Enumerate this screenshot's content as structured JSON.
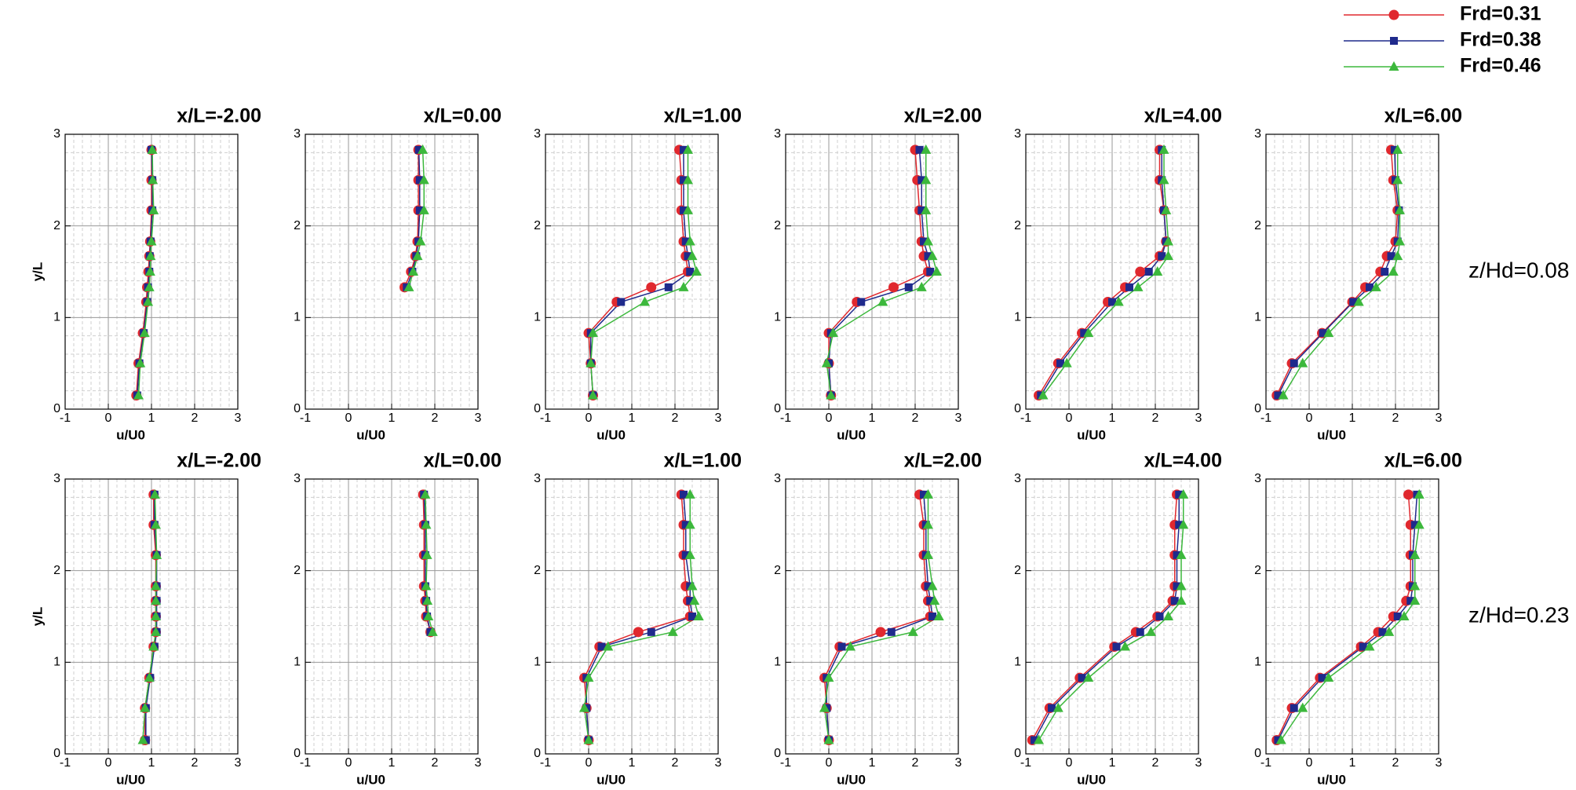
{
  "chart_data": [
    {
      "type": "line",
      "title": "x/L=-2.00",
      "x_label": "u/U0",
      "y_label": "y/L",
      "xlim": [
        -1,
        3
      ],
      "xticks": [
        -1,
        0,
        1,
        2,
        3
      ],
      "ylim": [
        0,
        3
      ],
      "yticks": [
        0,
        1,
        2,
        3
      ],
      "grid": true,
      "y": [
        0.15,
        0.5,
        0.83,
        1.17,
        1.33,
        1.5,
        1.67,
        1.83,
        2.17,
        2.5,
        2.83
      ],
      "series": [
        {
          "name": "Frd=0.31",
          "color": "#e0282e",
          "marker": "circle",
          "values": [
            0.65,
            0.7,
            0.8,
            0.88,
            0.9,
            0.93,
            0.95,
            0.97,
            1.0,
            1.0,
            1.0
          ]
        },
        {
          "name": "Frd=0.38",
          "color": "#1f2a8c",
          "marker": "square",
          "values": [
            0.67,
            0.72,
            0.82,
            0.9,
            0.92,
            0.95,
            0.96,
            0.98,
            1.02,
            1.02,
            1.0
          ]
        },
        {
          "name": "Frd=0.46",
          "color": "#3cb83c",
          "marker": "triangle",
          "values": [
            0.7,
            0.74,
            0.84,
            0.92,
            0.95,
            0.97,
            0.98,
            1.0,
            1.05,
            1.03,
            1.02
          ]
        }
      ]
    },
    {
      "type": "line",
      "title": "x/L=0.00",
      "x_label": "u/U0",
      "xlim": [
        -1,
        3
      ],
      "xticks": [
        -1,
        0,
        1,
        2,
        3
      ],
      "ylim": [
        0,
        3
      ],
      "yticks": [
        0,
        1,
        2,
        3
      ],
      "grid": true,
      "y": [
        0.15,
        0.5,
        0.83,
        1.17,
        1.33,
        1.5,
        1.67,
        1.83,
        2.17,
        2.5,
        2.83
      ],
      "series": [
        {
          "color": "#e0282e",
          "marker": "circle",
          "values": [
            null,
            null,
            null,
            null,
            1.3,
            1.45,
            1.55,
            1.6,
            1.62,
            1.62,
            1.62
          ]
        },
        {
          "color": "#1f2a8c",
          "marker": "square",
          "values": [
            null,
            null,
            null,
            null,
            1.35,
            1.48,
            1.57,
            1.62,
            1.65,
            1.65,
            1.63
          ]
        },
        {
          "color": "#3cb83c",
          "marker": "triangle",
          "values": [
            null,
            null,
            null,
            null,
            1.4,
            1.5,
            1.6,
            1.67,
            1.75,
            1.75,
            1.72
          ]
        }
      ]
    },
    {
      "type": "line",
      "title": "x/L=1.00",
      "x_label": "u/U0",
      "xlim": [
        -1,
        3
      ],
      "xticks": [
        -1,
        0,
        1,
        2,
        3
      ],
      "ylim": [
        0,
        3
      ],
      "yticks": [
        0,
        1,
        2,
        3
      ],
      "grid": true,
      "y": [
        0.15,
        0.5,
        0.83,
        1.17,
        1.33,
        1.5,
        1.67,
        1.83,
        2.17,
        2.5,
        2.83
      ],
      "series": [
        {
          "color": "#e0282e",
          "marker": "circle",
          "values": [
            0.1,
            0.05,
            0.0,
            0.65,
            1.45,
            2.3,
            2.25,
            2.2,
            2.15,
            2.15,
            2.1
          ]
        },
        {
          "color": "#1f2a8c",
          "marker": "square",
          "values": [
            0.1,
            0.05,
            0.05,
            0.75,
            1.85,
            2.35,
            2.3,
            2.25,
            2.2,
            2.2,
            2.2
          ]
        },
        {
          "color": "#3cb83c",
          "marker": "triangle",
          "values": [
            0.1,
            0.05,
            0.1,
            1.3,
            2.2,
            2.5,
            2.4,
            2.35,
            2.3,
            2.3,
            2.3
          ]
        }
      ]
    },
    {
      "type": "line",
      "title": "x/L=2.00",
      "x_label": "u/U0",
      "xlim": [
        -1,
        3
      ],
      "xticks": [
        -1,
        0,
        1,
        2,
        3
      ],
      "ylim": [
        0,
        3
      ],
      "yticks": [
        0,
        1,
        2,
        3
      ],
      "grid": true,
      "y": [
        0.15,
        0.5,
        0.83,
        1.17,
        1.33,
        1.5,
        1.67,
        1.83,
        2.17,
        2.5,
        2.83
      ],
      "series": [
        {
          "color": "#e0282e",
          "marker": "circle",
          "values": [
            0.05,
            0.0,
            0.0,
            0.65,
            1.5,
            2.3,
            2.2,
            2.15,
            2.1,
            2.05,
            2.0
          ]
        },
        {
          "color": "#1f2a8c",
          "marker": "square",
          "values": [
            0.05,
            0.0,
            0.05,
            0.75,
            1.85,
            2.35,
            2.3,
            2.2,
            2.15,
            2.15,
            2.1
          ]
        },
        {
          "color": "#3cb83c",
          "marker": "triangle",
          "values": [
            0.05,
            -0.05,
            0.1,
            1.25,
            2.15,
            2.5,
            2.4,
            2.3,
            2.25,
            2.25,
            2.25
          ]
        }
      ]
    },
    {
      "type": "line",
      "title": "x/L=4.00",
      "x_label": "u/U0",
      "xlim": [
        -1,
        3
      ],
      "xticks": [
        -1,
        0,
        1,
        2,
        3
      ],
      "ylim": [
        0,
        3
      ],
      "yticks": [
        0,
        1,
        2,
        3
      ],
      "grid": true,
      "y": [
        0.15,
        0.5,
        0.83,
        1.17,
        1.33,
        1.5,
        1.67,
        1.83,
        2.17,
        2.5,
        2.83
      ],
      "series": [
        {
          "color": "#e0282e",
          "marker": "circle",
          "values": [
            -0.7,
            -0.25,
            0.3,
            0.9,
            1.3,
            1.65,
            2.1,
            2.25,
            2.2,
            2.1,
            2.1
          ]
        },
        {
          "color": "#1f2a8c",
          "marker": "square",
          "values": [
            -0.65,
            -0.2,
            0.35,
            1.0,
            1.4,
            1.85,
            2.15,
            2.25,
            2.2,
            2.15,
            2.15
          ]
        },
        {
          "color": "#3cb83c",
          "marker": "triangle",
          "values": [
            -0.6,
            -0.05,
            0.45,
            1.15,
            1.6,
            2.05,
            2.3,
            2.3,
            2.25,
            2.2,
            2.2
          ]
        }
      ]
    },
    {
      "type": "line",
      "title": "x/L=6.00",
      "x_label": "u/U0",
      "annotation": "z/Hd=0.08",
      "xlim": [
        -1,
        3
      ],
      "xticks": [
        -1,
        0,
        1,
        2,
        3
      ],
      "ylim": [
        0,
        3
      ],
      "yticks": [
        0,
        1,
        2,
        3
      ],
      "grid": true,
      "y": [
        0.15,
        0.5,
        0.83,
        1.17,
        1.33,
        1.5,
        1.67,
        1.83,
        2.17,
        2.5,
        2.83
      ],
      "series": [
        {
          "color": "#e0282e",
          "marker": "circle",
          "values": [
            -0.75,
            -0.4,
            0.3,
            1.0,
            1.3,
            1.65,
            1.8,
            2.0,
            2.05,
            1.95,
            1.9
          ]
        },
        {
          "color": "#1f2a8c",
          "marker": "square",
          "values": [
            -0.72,
            -0.35,
            0.32,
            1.02,
            1.4,
            1.75,
            1.9,
            2.05,
            2.08,
            2.0,
            1.98
          ]
        },
        {
          "color": "#3cb83c",
          "marker": "triangle",
          "values": [
            -0.6,
            -0.15,
            0.45,
            1.15,
            1.55,
            1.95,
            2.05,
            2.1,
            2.1,
            2.05,
            2.05
          ]
        }
      ]
    },
    {
      "type": "line",
      "title": "x/L=-2.00",
      "x_label": "u/U0",
      "y_label": "y/L",
      "xlim": [
        -1,
        3
      ],
      "xticks": [
        -1,
        0,
        1,
        2,
        3
      ],
      "ylim": [
        0,
        3
      ],
      "yticks": [
        0,
        1,
        2,
        3
      ],
      "grid": true,
      "y": [
        0.15,
        0.5,
        0.83,
        1.17,
        1.33,
        1.5,
        1.67,
        1.83,
        2.17,
        2.5,
        2.83
      ],
      "series": [
        {
          "color": "#e0282e",
          "marker": "circle",
          "values": [
            0.85,
            0.85,
            0.95,
            1.05,
            1.1,
            1.1,
            1.1,
            1.1,
            1.1,
            1.05,
            1.05
          ]
        },
        {
          "color": "#1f2a8c",
          "marker": "square",
          "values": [
            0.87,
            0.87,
            0.97,
            1.07,
            1.12,
            1.12,
            1.12,
            1.12,
            1.12,
            1.07,
            1.07
          ]
        },
        {
          "color": "#3cb83c",
          "marker": "triangle",
          "values": [
            0.8,
            0.85,
            0.95,
            1.05,
            1.1,
            1.1,
            1.1,
            1.1,
            1.12,
            1.1,
            1.08
          ]
        }
      ]
    },
    {
      "type": "line",
      "title": "x/L=0.00",
      "x_label": "u/U0",
      "xlim": [
        -1,
        3
      ],
      "xticks": [
        -1,
        0,
        1,
        2,
        3
      ],
      "ylim": [
        0,
        3
      ],
      "yticks": [
        0,
        1,
        2,
        3
      ],
      "grid": true,
      "y": [
        0.15,
        0.5,
        0.83,
        1.17,
        1.33,
        1.5,
        1.67,
        1.83,
        2.17,
        2.5,
        2.83
      ],
      "series": [
        {
          "color": "#e0282e",
          "marker": "circle",
          "values": [
            null,
            null,
            null,
            null,
            1.9,
            1.8,
            1.78,
            1.75,
            1.75,
            1.75,
            1.73
          ]
        },
        {
          "color": "#1f2a8c",
          "marker": "square",
          "values": [
            null,
            null,
            null,
            null,
            1.9,
            1.82,
            1.8,
            1.78,
            1.78,
            1.78,
            1.75
          ]
        },
        {
          "color": "#3cb83c",
          "marker": "triangle",
          "values": [
            null,
            null,
            null,
            null,
            1.95,
            1.85,
            1.83,
            1.8,
            1.82,
            1.8,
            1.78
          ]
        }
      ]
    },
    {
      "type": "line",
      "title": "x/L=1.00",
      "x_label": "u/U0",
      "xlim": [
        -1,
        3
      ],
      "xticks": [
        -1,
        0,
        1,
        2,
        3
      ],
      "ylim": [
        0,
        3
      ],
      "yticks": [
        0,
        1,
        2,
        3
      ],
      "grid": true,
      "y": [
        0.15,
        0.5,
        0.83,
        1.17,
        1.33,
        1.5,
        1.67,
        1.83,
        2.17,
        2.5,
        2.83
      ],
      "series": [
        {
          "color": "#e0282e",
          "marker": "circle",
          "values": [
            0.0,
            -0.05,
            -0.1,
            0.25,
            1.15,
            2.35,
            2.3,
            2.25,
            2.2,
            2.2,
            2.15
          ]
        },
        {
          "color": "#1f2a8c",
          "marker": "square",
          "values": [
            0.0,
            -0.05,
            -0.05,
            0.3,
            1.45,
            2.4,
            2.35,
            2.35,
            2.25,
            2.25,
            2.2
          ]
        },
        {
          "color": "#3cb83c",
          "marker": "triangle",
          "values": [
            0.0,
            -0.1,
            0.0,
            0.45,
            1.95,
            2.55,
            2.45,
            2.4,
            2.35,
            2.35,
            2.35
          ]
        }
      ]
    },
    {
      "type": "line",
      "title": "x/L=2.00",
      "x_label": "u/U0",
      "xlim": [
        -1,
        3
      ],
      "xticks": [
        -1,
        0,
        1,
        2,
        3
      ],
      "ylim": [
        0,
        3
      ],
      "yticks": [
        0,
        1,
        2,
        3
      ],
      "grid": true,
      "y": [
        0.15,
        0.5,
        0.83,
        1.17,
        1.33,
        1.5,
        1.67,
        1.83,
        2.17,
        2.5,
        2.83
      ],
      "series": [
        {
          "color": "#e0282e",
          "marker": "circle",
          "values": [
            0.0,
            -0.05,
            -0.1,
            0.25,
            1.2,
            2.35,
            2.3,
            2.25,
            2.2,
            2.2,
            2.1
          ]
        },
        {
          "color": "#1f2a8c",
          "marker": "square",
          "values": [
            0.0,
            -0.05,
            -0.05,
            0.3,
            1.45,
            2.4,
            2.35,
            2.3,
            2.25,
            2.25,
            2.2
          ]
        },
        {
          "color": "#3cb83c",
          "marker": "triangle",
          "values": [
            0.0,
            -0.1,
            0.0,
            0.5,
            1.95,
            2.55,
            2.45,
            2.4,
            2.3,
            2.3,
            2.3
          ]
        }
      ]
    },
    {
      "type": "line",
      "title": "x/L=4.00",
      "x_label": "u/U0",
      "xlim": [
        -1,
        3
      ],
      "xticks": [
        -1,
        0,
        1,
        2,
        3
      ],
      "ylim": [
        0,
        3
      ],
      "yticks": [
        0,
        1,
        2,
        3
      ],
      "grid": true,
      "y": [
        0.15,
        0.5,
        0.83,
        1.17,
        1.33,
        1.5,
        1.67,
        1.83,
        2.17,
        2.5,
        2.83
      ],
      "series": [
        {
          "color": "#e0282e",
          "marker": "circle",
          "values": [
            -0.85,
            -0.45,
            0.25,
            1.05,
            1.55,
            2.05,
            2.4,
            2.45,
            2.45,
            2.45,
            2.5
          ]
        },
        {
          "color": "#1f2a8c",
          "marker": "square",
          "values": [
            -0.8,
            -0.4,
            0.3,
            1.1,
            1.65,
            2.1,
            2.45,
            2.5,
            2.5,
            2.55,
            2.55
          ]
        },
        {
          "color": "#3cb83c",
          "marker": "triangle",
          "values": [
            -0.7,
            -0.25,
            0.45,
            1.3,
            1.9,
            2.3,
            2.6,
            2.6,
            2.6,
            2.65,
            2.65
          ]
        }
      ]
    },
    {
      "type": "line",
      "title": "x/L=6.00",
      "x_label": "u/U0",
      "annotation": "z/Hd=0.23",
      "xlim": [
        -1,
        3
      ],
      "xticks": [
        -1,
        0,
        1,
        2,
        3
      ],
      "ylim": [
        0,
        3
      ],
      "yticks": [
        0,
        1,
        2,
        3
      ],
      "grid": true,
      "y": [
        0.15,
        0.5,
        0.83,
        1.17,
        1.33,
        1.5,
        1.67,
        1.83,
        2.17,
        2.5,
        2.83
      ],
      "series": [
        {
          "color": "#e0282e",
          "marker": "circle",
          "values": [
            -0.75,
            -0.4,
            0.25,
            1.2,
            1.6,
            1.95,
            2.25,
            2.35,
            2.35,
            2.35,
            2.3
          ]
        },
        {
          "color": "#1f2a8c",
          "marker": "square",
          "values": [
            -0.72,
            -0.35,
            0.3,
            1.25,
            1.7,
            2.05,
            2.35,
            2.4,
            2.4,
            2.45,
            2.5
          ]
        },
        {
          "color": "#3cb83c",
          "marker": "triangle",
          "values": [
            -0.65,
            -0.15,
            0.45,
            1.4,
            1.85,
            2.2,
            2.45,
            2.45,
            2.45,
            2.55,
            2.55
          ]
        }
      ]
    }
  ]
}
